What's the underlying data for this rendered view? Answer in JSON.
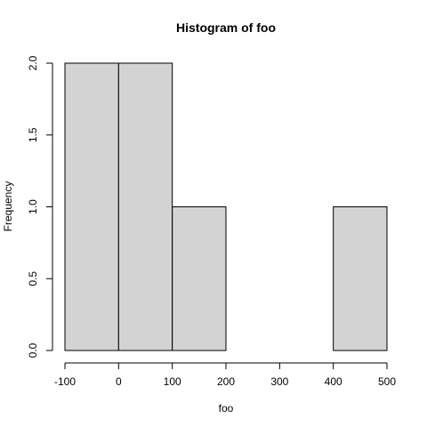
{
  "chart_data": {
    "type": "bar",
    "title": "Histogram of foo",
    "xlabel": "foo",
    "ylabel": "Frequency",
    "bins": [
      {
        "start": -100,
        "end": 0,
        "count": 2
      },
      {
        "start": 0,
        "end": 100,
        "count": 2
      },
      {
        "start": 100,
        "end": 200,
        "count": 1
      },
      {
        "start": 200,
        "end": 300,
        "count": 0
      },
      {
        "start": 300,
        "end": 400,
        "count": 0
      },
      {
        "start": 400,
        "end": 500,
        "count": 1
      }
    ],
    "xlim": [
      -100,
      500
    ],
    "ylim": [
      0,
      2
    ],
    "x_ticks": [
      -100,
      0,
      100,
      200,
      300,
      400,
      500
    ],
    "y_ticks": [
      0.0,
      0.5,
      1.0,
      1.5,
      2.0
    ],
    "y_tick_labels": [
      "0.0",
      "0.5",
      "1.0",
      "1.5",
      "2.0"
    ],
    "grid": false,
    "bar_color": "#d3d3d3",
    "edge_color": "#000000"
  }
}
